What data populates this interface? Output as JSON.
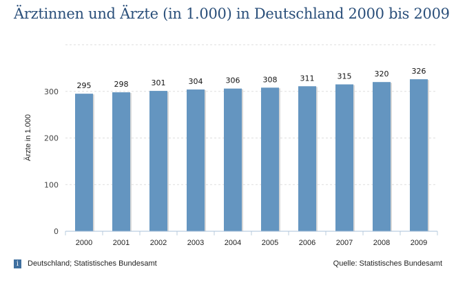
{
  "chart_data": {
    "type": "bar",
    "title": "Ärztinnen und Ärzte (in 1.000) in Deutschland 2000 bis 2009",
    "ylabel": "Ärzte in 1.000",
    "xlabel": "",
    "categories": [
      "2000",
      "2001",
      "2002",
      "2003",
      "2004",
      "2005",
      "2006",
      "2007",
      "2008",
      "2009"
    ],
    "values": [
      295,
      298,
      301,
      304,
      306,
      308,
      311,
      315,
      320,
      326
    ],
    "ylim": [
      0,
      400
    ],
    "yticks": [
      0,
      100,
      200,
      300
    ],
    "grid": true,
    "bar_color": "#6495c0"
  },
  "footer": {
    "info_icon": "i",
    "note": "Deutschland; Statistisches Bundesamt",
    "source": "Quelle: Statistisches Bundesamt"
  }
}
